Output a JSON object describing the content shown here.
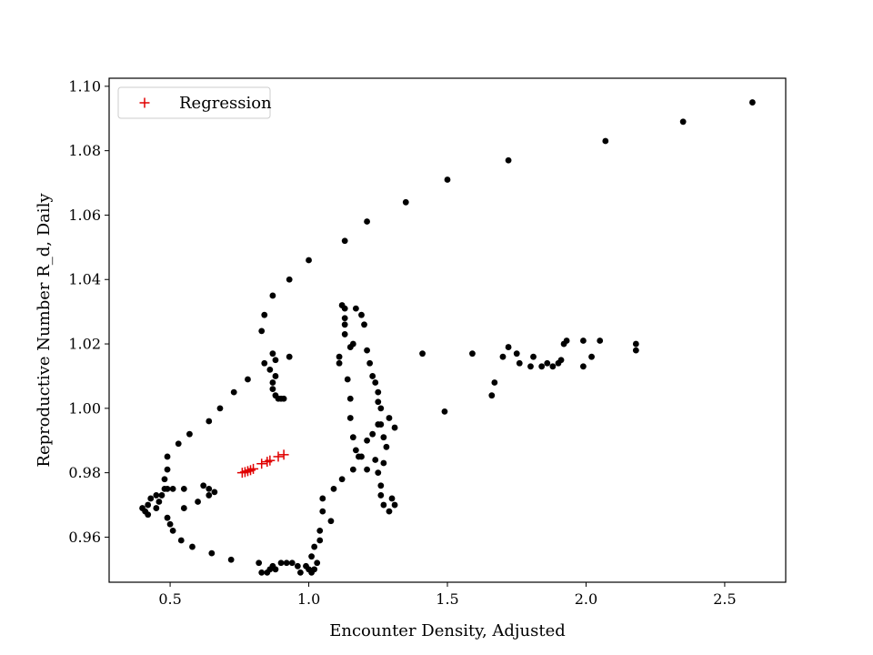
{
  "chart_data": {
    "type": "scatter",
    "xlabel": "Encounter Density, Adjusted",
    "ylabel": "Reproductive Number R_d, Daily",
    "xlim": [
      0.28,
      2.72
    ],
    "ylim": [
      0.946,
      1.1025
    ],
    "xticks": [
      0.5,
      1.0,
      1.5,
      2.0,
      2.5
    ],
    "xtick_labels": [
      "0.5",
      "1.0",
      "1.5",
      "2.0",
      "2.5"
    ],
    "yticks": [
      0.96,
      0.98,
      1.0,
      1.02,
      1.04,
      1.06,
      1.08,
      1.1
    ],
    "ytick_labels": [
      "0.96",
      "0.98",
      "1.00",
      "1.02",
      "1.04",
      "1.06",
      "1.08",
      "1.10"
    ],
    "legend_position": "top-left",
    "series": [
      {
        "name": "",
        "marker": "dot",
        "color": "#000000",
        "points": [
          [
            2.6,
            1.095
          ],
          [
            2.35,
            1.089
          ],
          [
            2.07,
            1.083
          ],
          [
            1.72,
            1.077
          ],
          [
            1.5,
            1.071
          ],
          [
            1.35,
            1.064
          ],
          [
            1.21,
            1.058
          ],
          [
            1.13,
            1.052
          ],
          [
            1.0,
            1.046
          ],
          [
            0.93,
            1.04
          ],
          [
            0.87,
            1.035
          ],
          [
            0.84,
            1.029
          ],
          [
            0.83,
            1.024
          ],
          [
            0.84,
            1.014
          ],
          [
            0.86,
            1.012
          ],
          [
            0.87,
            1.017
          ],
          [
            0.88,
            1.015
          ],
          [
            0.88,
            1.01
          ],
          [
            0.87,
            1.008
          ],
          [
            0.87,
            1.006
          ],
          [
            0.88,
            1.004
          ],
          [
            0.89,
            1.003
          ],
          [
            0.9,
            1.003
          ],
          [
            0.91,
            1.003
          ],
          [
            0.93,
            1.016
          ],
          [
            0.78,
            1.009
          ],
          [
            0.73,
            1.005
          ],
          [
            0.68,
            1.0
          ],
          [
            0.64,
            0.996
          ],
          [
            0.57,
            0.992
          ],
          [
            0.53,
            0.989
          ],
          [
            0.49,
            0.985
          ],
          [
            0.49,
            0.981
          ],
          [
            0.48,
            0.978
          ],
          [
            0.48,
            0.975
          ],
          [
            0.47,
            0.973
          ],
          [
            0.46,
            0.971
          ],
          [
            0.45,
            0.969
          ],
          [
            0.42,
            0.97
          ],
          [
            0.4,
            0.969
          ],
          [
            0.41,
            0.968
          ],
          [
            0.42,
            0.967
          ],
          [
            0.43,
            0.972
          ],
          [
            0.45,
            0.973
          ],
          [
            0.49,
            0.975
          ],
          [
            0.51,
            0.975
          ],
          [
            0.55,
            0.975
          ],
          [
            0.6,
            0.971
          ],
          [
            0.62,
            0.976
          ],
          [
            0.64,
            0.975
          ],
          [
            0.66,
            0.974
          ],
          [
            0.64,
            0.973
          ],
          [
            0.55,
            0.969
          ],
          [
            0.49,
            0.966
          ],
          [
            0.5,
            0.964
          ],
          [
            0.51,
            0.962
          ],
          [
            0.54,
            0.959
          ],
          [
            0.58,
            0.957
          ],
          [
            0.65,
            0.955
          ],
          [
            0.72,
            0.953
          ],
          [
            0.82,
            0.952
          ],
          [
            0.83,
            0.949
          ],
          [
            0.85,
            0.949
          ],
          [
            0.86,
            0.95
          ],
          [
            0.87,
            0.951
          ],
          [
            0.88,
            0.95
          ],
          [
            0.9,
            0.952
          ],
          [
            0.92,
            0.952
          ],
          [
            0.94,
            0.952
          ],
          [
            0.96,
            0.951
          ],
          [
            0.97,
            0.949
          ],
          [
            0.99,
            0.951
          ],
          [
            1.0,
            0.95
          ],
          [
            1.01,
            0.949
          ],
          [
            1.02,
            0.95
          ],
          [
            1.03,
            0.952
          ],
          [
            1.01,
            0.954
          ],
          [
            1.02,
            0.957
          ],
          [
            1.04,
            0.959
          ],
          [
            1.04,
            0.962
          ],
          [
            1.05,
            0.968
          ],
          [
            1.05,
            0.972
          ],
          [
            1.08,
            0.965
          ],
          [
            1.09,
            0.975
          ],
          [
            1.12,
            0.978
          ],
          [
            1.16,
            0.981
          ],
          [
            1.18,
            0.985
          ],
          [
            1.21,
            0.981
          ],
          [
            1.17,
            0.987
          ],
          [
            1.19,
            0.985
          ],
          [
            1.21,
            0.99
          ],
          [
            1.23,
            0.992
          ],
          [
            1.25,
            0.995
          ],
          [
            1.26,
            0.995
          ],
          [
            1.27,
            0.991
          ],
          [
            1.28,
            0.988
          ],
          [
            1.31,
            0.994
          ],
          [
            1.29,
            0.997
          ],
          [
            1.26,
            1.0
          ],
          [
            1.25,
            1.002
          ],
          [
            1.25,
            1.005
          ],
          [
            1.24,
            1.008
          ],
          [
            1.23,
            1.01
          ],
          [
            1.22,
            1.014
          ],
          [
            1.21,
            1.018
          ],
          [
            1.2,
            1.026
          ],
          [
            1.19,
            1.029
          ],
          [
            1.17,
            1.031
          ],
          [
            1.16,
            1.02
          ],
          [
            1.15,
            1.019
          ],
          [
            1.13,
            1.023
          ],
          [
            1.13,
            1.026
          ],
          [
            1.13,
            1.028
          ],
          [
            1.13,
            1.031
          ],
          [
            1.12,
            1.032
          ],
          [
            1.11,
            1.016
          ],
          [
            1.11,
            1.014
          ],
          [
            1.14,
            1.009
          ],
          [
            1.15,
            1.003
          ],
          [
            1.15,
            0.997
          ],
          [
            1.16,
            0.991
          ],
          [
            1.24,
            0.984
          ],
          [
            1.25,
            0.98
          ],
          [
            1.26,
            0.976
          ],
          [
            1.26,
            0.973
          ],
          [
            1.27,
            0.97
          ],
          [
            1.29,
            0.968
          ],
          [
            1.31,
            0.97
          ],
          [
            1.3,
            0.972
          ],
          [
            1.27,
            0.983
          ],
          [
            1.41,
            1.017
          ],
          [
            1.49,
            0.999
          ],
          [
            1.59,
            1.017
          ],
          [
            1.66,
            1.004
          ],
          [
            1.67,
            1.008
          ],
          [
            1.7,
            1.016
          ],
          [
            1.72,
            1.019
          ],
          [
            1.75,
            1.017
          ],
          [
            1.76,
            1.014
          ],
          [
            1.8,
            1.013
          ],
          [
            1.81,
            1.016
          ],
          [
            1.84,
            1.013
          ],
          [
            1.86,
            1.014
          ],
          [
            1.88,
            1.013
          ],
          [
            1.9,
            1.014
          ],
          [
            1.91,
            1.015
          ],
          [
            1.92,
            1.02
          ],
          [
            1.93,
            1.021
          ],
          [
            1.99,
            1.021
          ],
          [
            1.99,
            1.013
          ],
          [
            2.02,
            1.016
          ],
          [
            2.05,
            1.021
          ],
          [
            2.18,
            1.018
          ],
          [
            2.18,
            1.02
          ]
        ]
      },
      {
        "name": "Regression",
        "marker": "plus",
        "color": "#e00000",
        "points": [
          [
            0.76,
            0.98
          ],
          [
            0.77,
            0.9802
          ],
          [
            0.78,
            0.9805
          ],
          [
            0.79,
            0.9808
          ],
          [
            0.8,
            0.9812
          ],
          [
            0.83,
            0.9828
          ],
          [
            0.85,
            0.9834
          ],
          [
            0.86,
            0.9838
          ],
          [
            0.89,
            0.985
          ],
          [
            0.91,
            0.9856
          ]
        ]
      }
    ]
  }
}
